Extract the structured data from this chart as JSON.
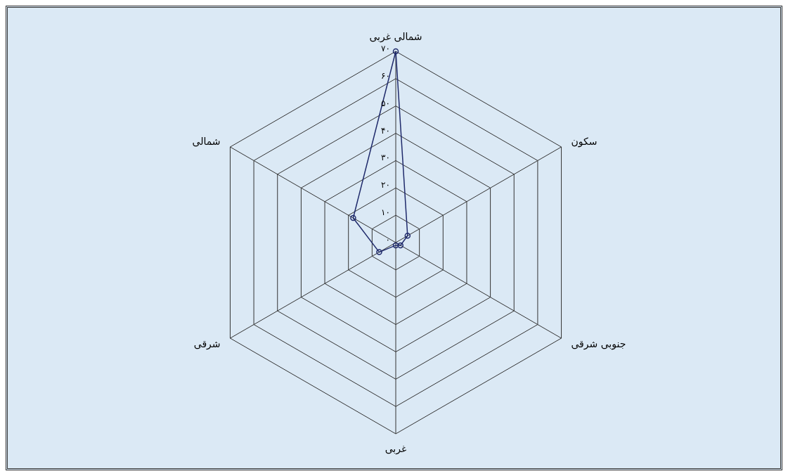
{
  "chart_data": {
    "type": "radar",
    "categories": [
      "شمالی غربی",
      "سکون",
      "جنوبی شرقی",
      "غربی",
      "شرقی",
      "شمالی"
    ],
    "series": [
      {
        "color": "#1f2a6b",
        "values": [
          70,
          5,
          2,
          1,
          7,
          18
        ]
      }
    ],
    "ylim": [
      0,
      70
    ],
    "yticks": [
      {
        "value": 0,
        "label": "۰"
      },
      {
        "value": 10,
        "label": "۱۰"
      },
      {
        "value": 20,
        "label": "۲۰"
      },
      {
        "value": 30,
        "label": "۳۰"
      },
      {
        "value": 40,
        "label": "۴۰"
      },
      {
        "value": 50,
        "label": "۵۰"
      },
      {
        "value": 60,
        "label": "۶۰"
      },
      {
        "value": 70,
        "label": "۷۰"
      }
    ],
    "grid": true,
    "marker": "circle",
    "legend": false
  }
}
